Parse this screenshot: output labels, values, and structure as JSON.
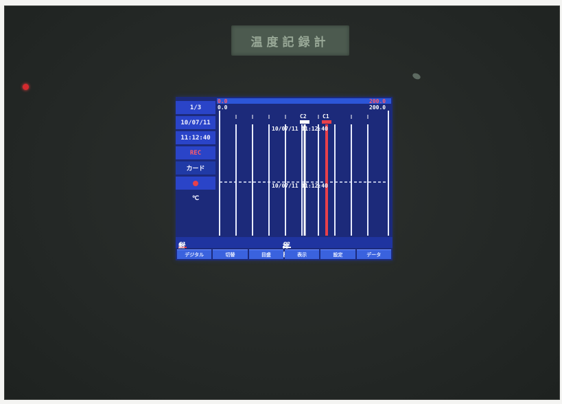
{
  "device": {
    "plate_label": "温度記録計"
  },
  "panel": {
    "page": "1/3",
    "date": "10/07/11",
    "time": "11:12:40",
    "status_red": "REC",
    "card": "カード",
    "unit": "℃"
  },
  "scale": {
    "left_top": "0.0",
    "left_bottom": "0.0",
    "right_top": "200.0",
    "right_bottom": "200.0"
  },
  "chart": {
    "markers": [
      "C2",
      "C1"
    ],
    "timestamp_upper": "10/07/11 11:12:40",
    "timestamp_lower": "10/07/11 11:12:40"
  },
  "channels": [
    {
      "tag": "C1",
      "label": "熱風入口温度",
      "color": "#e8404a"
    },
    {
      "tag": "C2",
      "label": "排風出口温度",
      "color": "#ffffff"
    }
  ],
  "softkeys": [
    "デジタル",
    "切替",
    "目盛",
    "表示",
    "設定",
    "データ"
  ],
  "colors": {
    "screen_bg": "#1c2a7a",
    "accent_blue": "#2a44c8",
    "trace_red": "#e8404a"
  }
}
